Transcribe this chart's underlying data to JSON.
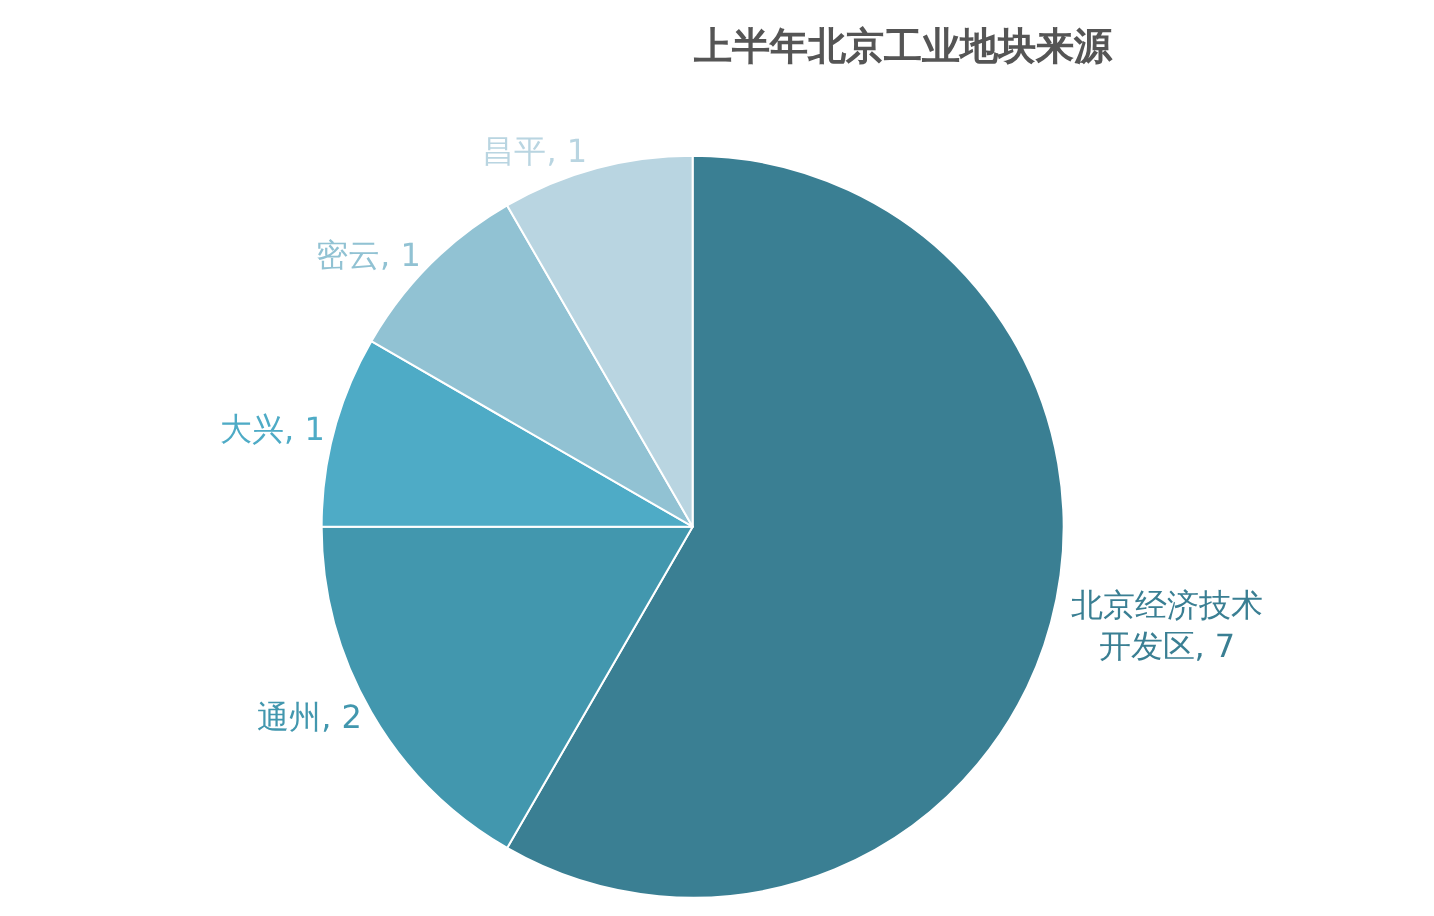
{
  "chart_data": {
    "type": "pie",
    "title": "上半年北京工业地块来源",
    "categories": [
      "北京经济技术开发区",
      "通州",
      "大兴",
      "密云",
      "昌平"
    ],
    "values": [
      7,
      2,
      1,
      1,
      1
    ],
    "value_labels": [
      ", 7",
      ", 2",
      ", 1",
      ", 1",
      ", 1"
    ],
    "colors": [
      "#3a7f93",
      "#4297ae",
      "#4eabc6",
      "#91c2d3",
      "#b9d5e1"
    ],
    "legend": false
  }
}
